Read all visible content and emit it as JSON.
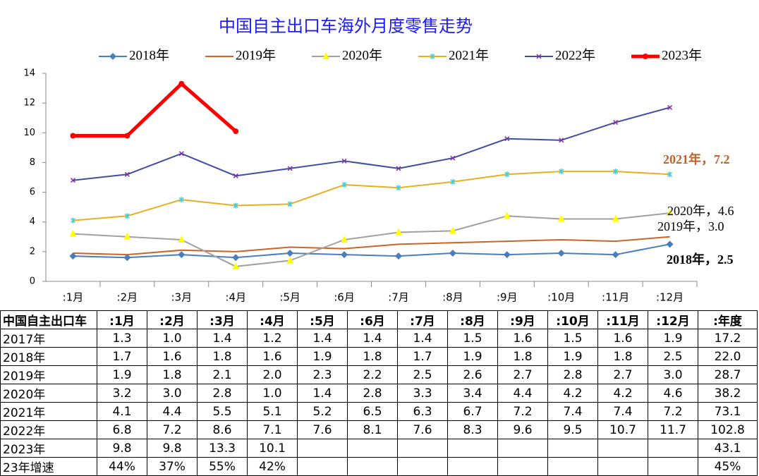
{
  "chart_data": {
    "type": "line",
    "title": "中国自主出口车海外月度零售走势",
    "categories": [
      ":1月",
      ":2月",
      ":3月",
      ":4月",
      ":5月",
      ":6月",
      ":7月",
      ":8月",
      ":9月",
      ":10月",
      ":11月",
      ":12月"
    ],
    "series": [
      {
        "name": "2018年",
        "color": "#4a7ebb",
        "marker": "diamond",
        "marker_color": "#4a7ebb",
        "width": 2,
        "values": [
          1.7,
          1.6,
          1.8,
          1.6,
          1.9,
          1.8,
          1.7,
          1.9,
          1.8,
          1.9,
          1.8,
          2.5
        ]
      },
      {
        "name": "2019年",
        "color": "#cc6428",
        "marker": "none",
        "marker_color": "#cc6428",
        "width": 2,
        "values": [
          1.9,
          1.8,
          2.1,
          2.0,
          2.3,
          2.2,
          2.5,
          2.6,
          2.7,
          2.8,
          2.7,
          3.0
        ]
      },
      {
        "name": "2020年",
        "color": "#a0a0a0",
        "marker": "triangle",
        "marker_color": "#ffff00",
        "width": 2,
        "values": [
          3.2,
          3.0,
          2.8,
          1.0,
          1.4,
          2.8,
          3.3,
          3.4,
          4.4,
          4.2,
          4.2,
          4.6
        ]
      },
      {
        "name": "2021年",
        "color": "#e6b020",
        "marker": "asterisk",
        "marker_color": "#40d0e0",
        "width": 2,
        "values": [
          4.1,
          4.4,
          5.5,
          5.1,
          5.2,
          6.5,
          6.3,
          6.7,
          7.2,
          7.4,
          7.4,
          7.2
        ]
      },
      {
        "name": "2022年",
        "color": "#3f4fa0",
        "marker": "x",
        "marker_color": "#8030a0",
        "width": 2,
        "values": [
          6.8,
          7.2,
          8.6,
          7.1,
          7.6,
          8.1,
          7.6,
          8.3,
          9.6,
          9.5,
          10.7,
          11.7
        ]
      },
      {
        "name": "2023年",
        "color": "#ff0000",
        "marker": "circle",
        "marker_color": "#ff0000",
        "width": 5,
        "values": [
          9.8,
          9.8,
          13.3,
          10.1,
          null,
          null,
          null,
          null,
          null,
          null,
          null,
          null
        ]
      }
    ],
    "ylim": [
      0,
      14
    ],
    "yticks": [
      0,
      2,
      4,
      6,
      8,
      10,
      12,
      14
    ],
    "grid": false,
    "legend": "top",
    "annotations": [
      {
        "text": "2021年，7.2",
        "color": "#c0602a",
        "bold": true
      },
      {
        "text": "2020年，4.6",
        "color": "#000000",
        "bold": false
      },
      {
        "text": "2019年，3.0",
        "color": "#000000",
        "bold": false
      },
      {
        "text": "2018年，2.5",
        "color": "#000000",
        "bold": true
      }
    ]
  },
  "table": {
    "header": [
      "中国自主出口车",
      ":1月",
      ":2月",
      ":3月",
      ":4月",
      ":5月",
      ":6月",
      ":7月",
      ":8月",
      ":9月",
      ":10月",
      ":11月",
      ":12月",
      ":年度"
    ],
    "rows": [
      [
        "2017年",
        "1.3",
        "1.0",
        "1.4",
        "1.2",
        "1.4",
        "1.4",
        "1.4",
        "1.5",
        "1.6",
        "1.5",
        "1.6",
        "1.9",
        "17.2"
      ],
      [
        "2018年",
        "1.7",
        "1.6",
        "1.8",
        "1.6",
        "1.9",
        "1.8",
        "1.7",
        "1.9",
        "1.8",
        "1.9",
        "1.8",
        "2.5",
        "22.0"
      ],
      [
        "2019年",
        "1.9",
        "1.8",
        "2.1",
        "2.0",
        "2.3",
        "2.2",
        "2.5",
        "2.6",
        "2.7",
        "2.8",
        "2.7",
        "3.0",
        "28.7"
      ],
      [
        "2020年",
        "3.2",
        "3.0",
        "2.8",
        "1.0",
        "1.4",
        "2.8",
        "3.3",
        "3.4",
        "4.4",
        "4.2",
        "4.2",
        "4.6",
        "38.2"
      ],
      [
        "2021年",
        "4.1",
        "4.4",
        "5.5",
        "5.1",
        "5.2",
        "6.5",
        "6.3",
        "6.7",
        "7.2",
        "7.4",
        "7.4",
        "7.2",
        "73.1"
      ],
      [
        "2022年",
        "6.8",
        "7.2",
        "8.6",
        "7.1",
        "7.6",
        "8.1",
        "7.6",
        "8.3",
        "9.6",
        "9.5",
        "10.7",
        "11.7",
        "102.8"
      ],
      [
        "2023年",
        "9.8",
        "9.8",
        "13.3",
        "10.1",
        "",
        "",
        "",
        "",
        "",
        "",
        "",
        "",
        "43.1"
      ],
      [
        "23年增速",
        "44%",
        "37%",
        "55%",
        "42%",
        "",
        "",
        "",
        "",
        "",
        "",
        "",
        "",
        "45%"
      ]
    ]
  }
}
